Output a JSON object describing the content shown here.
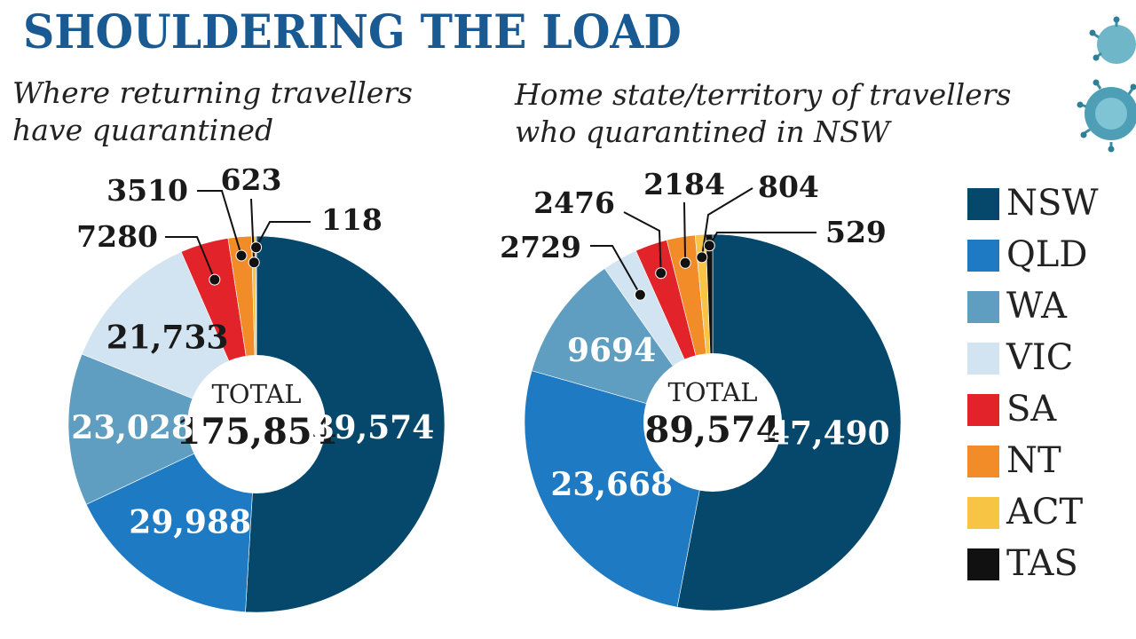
{
  "headline": "SHOULDERING THE LOAD",
  "subtitles": {
    "left": [
      "Where returning travellers",
      "have quarantined"
    ],
    "right": [
      "Home state/territory of travellers",
      "who quarantined in NSW"
    ]
  },
  "colors": {
    "NSW": "#05486b",
    "QLD": "#1e7ac2",
    "WA": "#5f9ec0",
    "VIC": "#d2e3f1",
    "SA": "#e3232a",
    "NT": "#f28c28",
    "ACT": "#f7c443",
    "TAS": "#111111",
    "headline": "#1a5a93"
  },
  "legend": [
    "NSW",
    "QLD",
    "WA",
    "VIC",
    "SA",
    "NT",
    "ACT",
    "TAS"
  ],
  "chart_data": [
    {
      "type": "pie",
      "donut": true,
      "title": "Where returning travellers have quarantined",
      "center_label": "TOTAL",
      "total": "175,854",
      "slices": [
        {
          "name": "NSW",
          "value": 89574,
          "label": "89,574"
        },
        {
          "name": "QLD",
          "value": 29988,
          "label": "29,988"
        },
        {
          "name": "WA",
          "value": 23028,
          "label": "23,028"
        },
        {
          "name": "VIC",
          "value": 21733,
          "label": "21,733"
        },
        {
          "name": "SA",
          "value": 7280,
          "label": "7280"
        },
        {
          "name": "NT",
          "value": 3510,
          "label": "3510"
        },
        {
          "name": "ACT",
          "value": 623,
          "label": "623"
        },
        {
          "name": "TAS",
          "value": 118,
          "label": "118"
        }
      ]
    },
    {
      "type": "pie",
      "donut": true,
      "title": "Home state/territory of travellers who quarantined in NSW",
      "center_label": "TOTAL",
      "total": "89,574",
      "slices": [
        {
          "name": "NSW",
          "value": 47490,
          "label": "47,490"
        },
        {
          "name": "QLD",
          "value": 23668,
          "label": "23,668"
        },
        {
          "name": "WA",
          "value": 9694,
          "label": "9694"
        },
        {
          "name": "VIC",
          "value": 2729,
          "label": "2729"
        },
        {
          "name": "SA",
          "value": 2476,
          "label": "2476"
        },
        {
          "name": "NT",
          "value": 2184,
          "label": "2184"
        },
        {
          "name": "ACT",
          "value": 804,
          "label": "804"
        },
        {
          "name": "TAS",
          "value": 529,
          "label": "529"
        }
      ]
    }
  ]
}
